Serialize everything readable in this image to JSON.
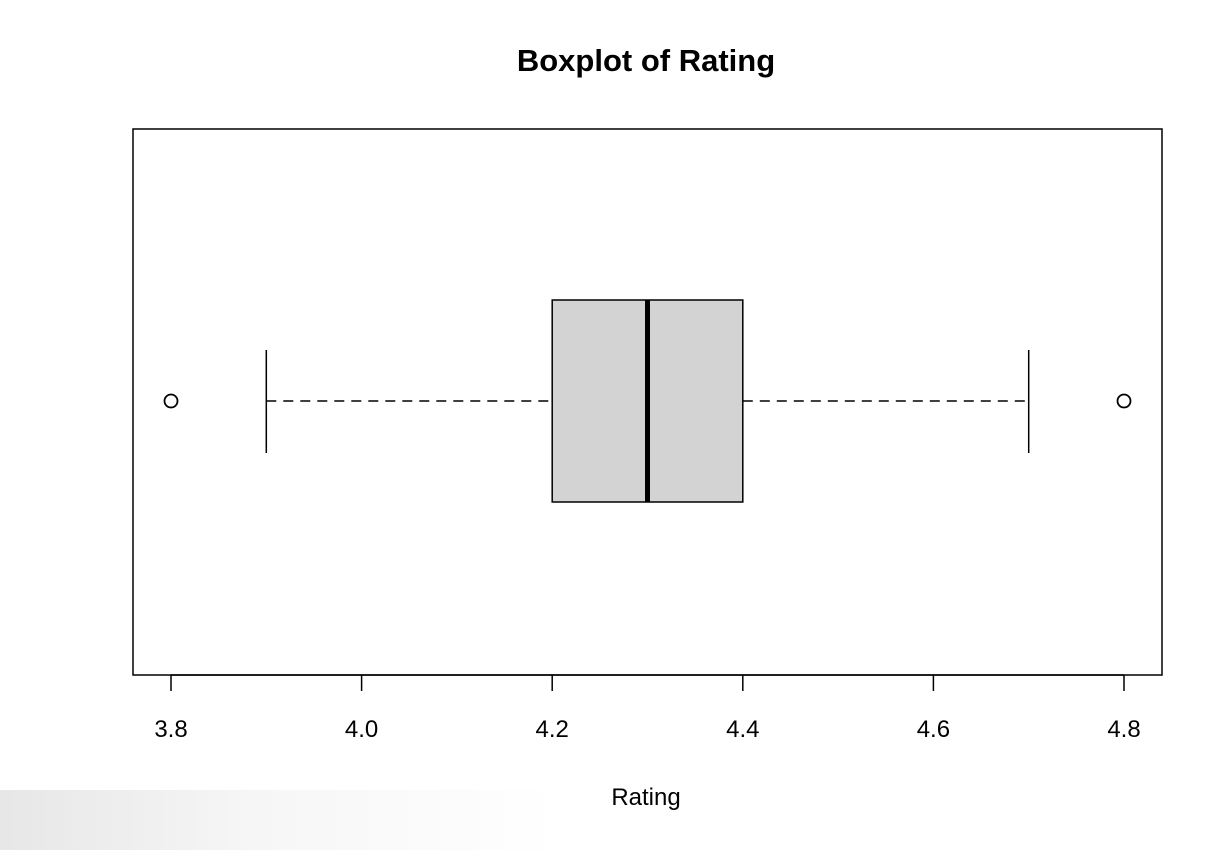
{
  "chart_data": {
    "type": "boxplot",
    "title": "Boxplot of Rating",
    "xlabel": "Rating",
    "ylabel": "",
    "orientation": "horizontal",
    "xlim": [
      3.8,
      4.8
    ],
    "ticks": [
      "3.8",
      "4.0",
      "4.2",
      "4.4",
      "4.6",
      "4.8"
    ],
    "tick_values": [
      3.8,
      4.0,
      4.2,
      4.4,
      4.6,
      4.8
    ],
    "box": {
      "whisker_low": 3.9,
      "q1": 4.2,
      "median": 4.3,
      "q3": 4.4,
      "whisker_high": 4.7
    },
    "outliers": [
      3.8,
      4.8
    ],
    "grid": false,
    "legend": "none",
    "colors": {
      "box_fill": "#d3d3d3",
      "stroke": "#000000"
    }
  }
}
